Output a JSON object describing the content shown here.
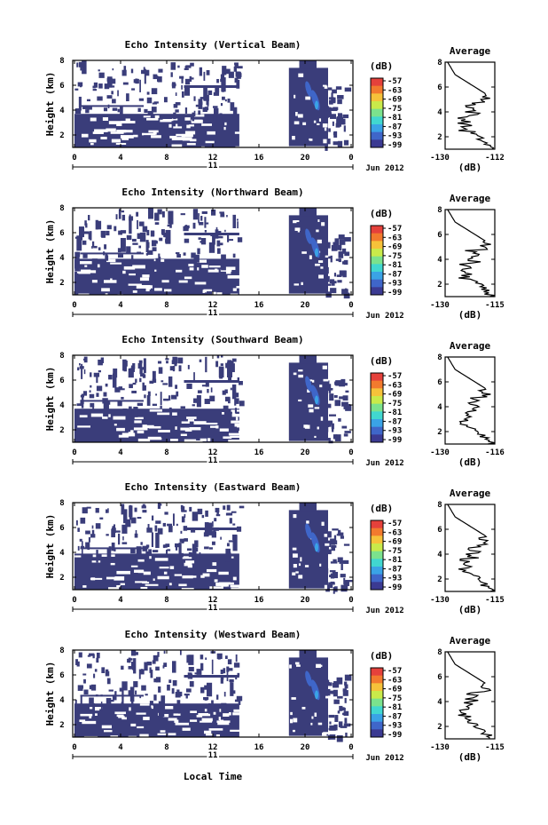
{
  "figure": {
    "xlabel": "Local Time",
    "date_label": "Jun 2012",
    "day_label": "11"
  },
  "chart_data": [
    {
      "type": "heatmap",
      "title": "Echo Intensity (Vertical Beam)",
      "ylabel": "Height (km)",
      "xlabel": "Local Time",
      "xticks": [
        "0",
        "4",
        "8",
        "12",
        "16",
        "20",
        "0"
      ],
      "yticks": [
        "2",
        "4",
        "6",
        "8"
      ],
      "xlim": [
        0,
        24
      ],
      "ylim": [
        1,
        8
      ],
      "colorbar": {
        "label": "(dB)",
        "ticks": [
          "-57",
          "-63",
          "-69",
          "-75",
          "-81",
          "-87",
          "-93",
          "-99"
        ]
      },
      "profile": {
        "title": "Average",
        "xlabel": "(dB)",
        "xticks": [
          "-130",
          "-112"
        ],
        "yticks": [
          "2",
          "4",
          "6",
          "8"
        ],
        "xlim": [
          -130,
          -112
        ]
      }
    },
    {
      "type": "heatmap",
      "title": "Echo Intensity (Northward Beam)",
      "ylabel": "Height (km)",
      "xlabel": "Local Time",
      "xticks": [
        "0",
        "4",
        "8",
        "12",
        "16",
        "20",
        "0"
      ],
      "yticks": [
        "2",
        "4",
        "6",
        "8"
      ],
      "xlim": [
        0,
        24
      ],
      "ylim": [
        1,
        8
      ],
      "colorbar": {
        "label": "(dB)",
        "ticks": [
          "-57",
          "-63",
          "-69",
          "-75",
          "-81",
          "-87",
          "-93",
          "-99"
        ]
      },
      "profile": {
        "title": "Average",
        "xlabel": "(dB)",
        "xticks": [
          "-130",
          "-115"
        ],
        "yticks": [
          "2",
          "4",
          "6",
          "8"
        ],
        "xlim": [
          -130,
          -115
        ]
      }
    },
    {
      "type": "heatmap",
      "title": "Echo Intensity (Southward Beam)",
      "ylabel": "Height (km)",
      "xlabel": "Local Time",
      "xticks": [
        "0",
        "4",
        "8",
        "12",
        "16",
        "20",
        "0"
      ],
      "yticks": [
        "2",
        "4",
        "6",
        "8"
      ],
      "xlim": [
        0,
        24
      ],
      "ylim": [
        1,
        8
      ],
      "colorbar": {
        "label": "(dB)",
        "ticks": [
          "-57",
          "-63",
          "-69",
          "-75",
          "-81",
          "-87",
          "-93",
          "-99"
        ]
      },
      "profile": {
        "title": "Average",
        "xlabel": "(dB)",
        "xticks": [
          "-130",
          "-116"
        ],
        "yticks": [
          "2",
          "4",
          "6",
          "8"
        ],
        "xlim": [
          -130,
          -116
        ]
      }
    },
    {
      "type": "heatmap",
      "title": "Echo Intensity (Eastward Beam)",
      "ylabel": "Height (km)",
      "xlabel": "Local Time",
      "xticks": [
        "0",
        "4",
        "8",
        "12",
        "16",
        "20",
        "0"
      ],
      "yticks": [
        "2",
        "4",
        "6",
        "8"
      ],
      "xlim": [
        0,
        24
      ],
      "ylim": [
        1,
        8
      ],
      "colorbar": {
        "label": "(dB)",
        "ticks": [
          "-57",
          "-63",
          "-69",
          "-75",
          "-81",
          "-87",
          "-93",
          "-99"
        ]
      },
      "profile": {
        "title": "Average",
        "xlabel": "(dB)",
        "xticks": [
          "-130",
          "-115"
        ],
        "yticks": [
          "2",
          "4",
          "6",
          "8"
        ],
        "xlim": [
          -130,
          -115
        ]
      }
    },
    {
      "type": "heatmap",
      "title": "Echo Intensity (Westward Beam)",
      "ylabel": "Height (km)",
      "xlabel": "Local Time",
      "xticks": [
        "0",
        "4",
        "8",
        "12",
        "16",
        "20",
        "0"
      ],
      "yticks": [
        "2",
        "4",
        "6",
        "8"
      ],
      "xlim": [
        0,
        24
      ],
      "ylim": [
        1,
        8
      ],
      "colorbar": {
        "label": "(dB)",
        "ticks": [
          "-57",
          "-63",
          "-69",
          "-75",
          "-81",
          "-87",
          "-93",
          "-99"
        ]
      },
      "profile": {
        "title": "Average",
        "xlabel": "(dB)",
        "xticks": [
          "-130",
          "-115"
        ],
        "yticks": [
          "2",
          "4",
          "6",
          "8"
        ],
        "xlim": [
          -130,
          -115
        ]
      }
    }
  ],
  "colors": {
    "fill": "#3a3d7a",
    "colorbar": [
      "#3b3a92",
      "#3f66c9",
      "#3aa3e6",
      "#41d7d0",
      "#7be28d",
      "#c9ea4a",
      "#f6c23a",
      "#f27a2e",
      "#e5413b"
    ]
  }
}
